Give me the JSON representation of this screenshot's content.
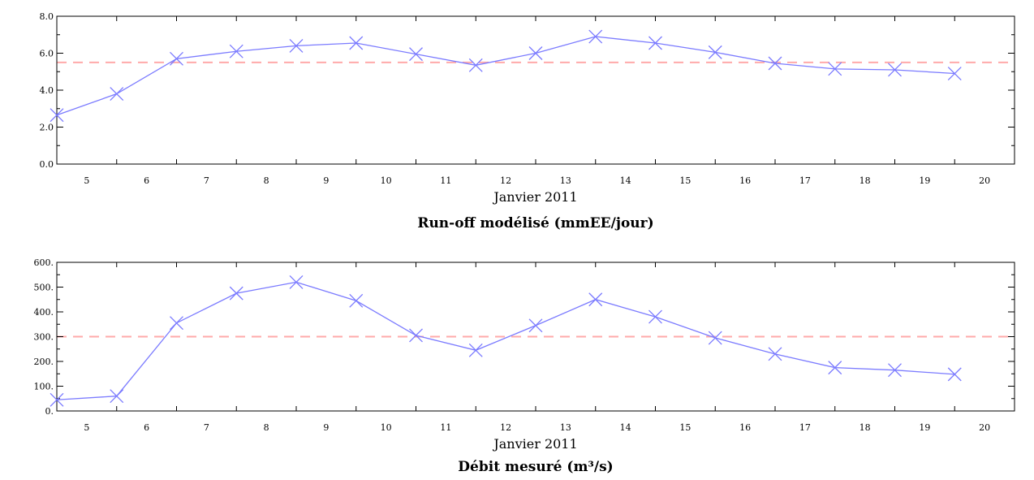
{
  "chart_data": [
    {
      "type": "line",
      "title": "Run-off modélisé (mmEE/jour)",
      "xlabel": "Janvier 2011",
      "ylabel": "",
      "xlim": [
        4.5,
        20.5
      ],
      "ylim": [
        0,
        8
      ],
      "x_ticks": [
        5,
        6,
        7,
        8,
        9,
        10,
        11,
        12,
        13,
        14,
        15,
        16,
        17,
        18,
        19,
        20
      ],
      "y_ticks": [
        0,
        2,
        4,
        6,
        8
      ],
      "y_tick_labels": [
        "0.0",
        "2.0",
        "4.0",
        "6.0",
        "8.0"
      ],
      "grid": false,
      "colors": {
        "series": "#7b7bff",
        "reference": "#ffaaaa"
      },
      "series": [
        {
          "marker": "x",
          "x": [
            4.5,
            5.5,
            6.5,
            7.5,
            8.5,
            9.5,
            10.5,
            11.5,
            12.5,
            13.5,
            14.5,
            15.5,
            16.5,
            17.5,
            18.5,
            19.5
          ],
          "values": [
            2.65,
            3.8,
            5.7,
            6.1,
            6.4,
            6.55,
            5.95,
            5.35,
            6.0,
            6.9,
            6.55,
            6.05,
            5.45,
            5.15,
            5.1,
            4.9
          ]
        }
      ],
      "reference_line": {
        "y": 5.5,
        "style": "dashed"
      }
    },
    {
      "type": "line",
      "title": "Débit mesuré (m³/s)",
      "xlabel": "Janvier 2011",
      "ylabel": "",
      "xlim": [
        4.5,
        20.5
      ],
      "ylim": [
        0,
        600
      ],
      "x_ticks": [
        5,
        6,
        7,
        8,
        9,
        10,
        11,
        12,
        13,
        14,
        15,
        16,
        17,
        18,
        19,
        20
      ],
      "y_ticks": [
        0,
        100,
        200,
        300,
        400,
        500,
        600
      ],
      "y_tick_labels": [
        "0.",
        "100.",
        "200.",
        "300.",
        "400.",
        "500.",
        "600."
      ],
      "grid": false,
      "colors": {
        "series": "#7b7bff",
        "reference": "#ffaaaa"
      },
      "series": [
        {
          "marker": "x",
          "x": [
            4.5,
            5.5,
            6.5,
            7.5,
            8.5,
            9.5,
            10.5,
            11.5,
            12.5,
            13.5,
            14.5,
            15.5,
            16.5,
            17.5,
            18.5,
            19.5
          ],
          "values": [
            45,
            60,
            355,
            475,
            520,
            445,
            305,
            245,
            345,
            450,
            380,
            295,
            230,
            175,
            165,
            148
          ]
        }
      ],
      "reference_line": {
        "y": 300,
        "style": "dashed"
      }
    }
  ]
}
